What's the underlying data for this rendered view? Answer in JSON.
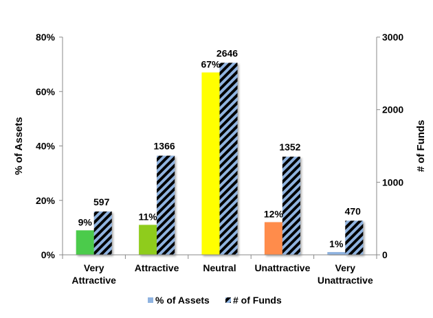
{
  "chart_data": {
    "type": "bar",
    "categories": [
      [
        "Very",
        "Attractive"
      ],
      [
        "Attractive"
      ],
      [
        "Neutral"
      ],
      [
        "Unattractive"
      ],
      [
        "Very",
        "Unattractive"
      ]
    ],
    "series": [
      {
        "name": "% of Assets",
        "axis": "left",
        "values": [
          9,
          11,
          67,
          12,
          1
        ],
        "labels": [
          "9%",
          "11%",
          "67%",
          "12%",
          "1%"
        ],
        "colors": [
          "#4ccb4c",
          "#8fcc1a",
          "#ffff00",
          "#ff8c4c",
          "#8fb3e0"
        ],
        "legend_color": "#8fb3e0"
      },
      {
        "name": "# of Funds",
        "axis": "right",
        "values": [
          597,
          1366,
          2646,
          1352,
          470
        ],
        "labels": [
          "597",
          "1366",
          "2646",
          "1352",
          "470"
        ],
        "pattern": "diagonal-stripes",
        "stripe_colors": [
          "#8fb3e0",
          "#000000"
        ]
      }
    ],
    "y_left": {
      "label": "% of Assets",
      "ylim": [
        0,
        80
      ],
      "ticks": [
        0,
        20,
        40,
        60,
        80
      ],
      "tick_labels": [
        "0%",
        "20%",
        "40%",
        "60%",
        "80%"
      ]
    },
    "y_right": {
      "label": "# of Funds",
      "ylim": [
        0,
        3000
      ],
      "ticks": [
        0,
        1000,
        2000,
        3000
      ],
      "tick_labels": [
        "0",
        "1000",
        "2000",
        "3000"
      ]
    },
    "grid": false,
    "legend_position": "bottom"
  }
}
